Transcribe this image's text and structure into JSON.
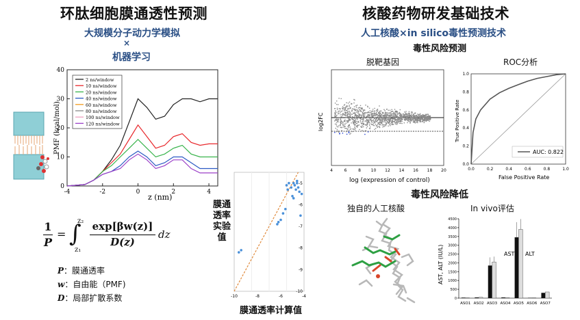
{
  "left": {
    "title": "环肽细胞膜通透性预测",
    "subtitle_line1": "大规模分子动力学模拟",
    "subtitle_x": "×",
    "subtitle_line2": "机器学习",
    "pmf_chart": {
      "ylabel": "PMF (kcal/mol)",
      "xlabel": "z (nm)",
      "yticks": [
        "0",
        "10",
        "20",
        "30",
        "40"
      ],
      "xticks": [
        "-4",
        "-2",
        "0",
        "2",
        "4"
      ],
      "legend": [
        {
          "name": "2 ns/window",
          "color": "#222222"
        },
        {
          "name": "10 ns/window",
          "color": "#e8262a"
        },
        {
          "name": "20 ns/window",
          "color": "#37b34a"
        },
        {
          "name": "40 ns/window",
          "color": "#2b59c3"
        },
        {
          "name": "60 ns/window",
          "color": "#f39b1c"
        },
        {
          "name": "80 ns/window",
          "color": "#888888"
        },
        {
          "name": "100 ns/window",
          "color": "#f0a0c0"
        },
        {
          "name": "120 ns/window",
          "color": "#9b3fc7"
        }
      ]
    },
    "equation": {
      "lhs_num": "1",
      "lhs_den": "P",
      "equals": "=",
      "int_upper": "z₂",
      "int_lower": "z₁",
      "numerator": "exp[βw(z)]",
      "denominator": "D(z)",
      "dz": "dz"
    },
    "defs": [
      {
        "sym": "P",
        "text": "：膜通透率"
      },
      {
        "sym": "w",
        "text": "：自由能（PMF)"
      },
      {
        "sym": "D",
        "text": "：局部扩散系数"
      }
    ],
    "scatter": {
      "ylabel": "膜通透率实验值",
      "xlabel": "膜通透率计算值",
      "xticks": [
        "-10",
        "-8",
        "-6",
        "-4"
      ],
      "yticks": [
        "-5",
        "-6",
        "-7",
        "-8",
        "-9",
        "-10"
      ]
    }
  },
  "right": {
    "title": "核酸药物研发基础技术",
    "subtitle": "人工核酸×in silico毒性预测技术",
    "section1": "毒性风险预测",
    "ma_plot": {
      "title": "脱靶基因",
      "ylabel": "log2FC",
      "xlabel": "log (expression of control)",
      "xticks": [
        "4",
        "6",
        "8",
        "10",
        "12",
        "14",
        "16",
        "18",
        "20"
      ]
    },
    "roc": {
      "title": "ROC分析",
      "ylabel": "True Positive Rate",
      "xlabel": "False Positive Rate",
      "ticks": [
        "0.0",
        "0.2",
        "0.4",
        "0.6",
        "0.8",
        "1.0"
      ],
      "legend": "AUC: 0.822"
    },
    "section2": "毒性风险降低",
    "molecule_title": "独自的人工核酸",
    "invivo": {
      "title": "In vivo评估",
      "ylabel": "AST, ALT (IU/L)",
      "label_ast": "AST",
      "label_alt": "ALT",
      "yticks": [
        "0",
        "500",
        "1000",
        "1500",
        "2000",
        "2500",
        "3000",
        "3500",
        "4000",
        "4500"
      ],
      "categories": [
        "ASO1",
        "ASO2",
        "ASO3",
        "ASO4",
        "ASO5",
        "ASO6",
        "ASO7"
      ],
      "ast": [
        30,
        40,
        1850,
        40,
        3450,
        20,
        300
      ],
      "alt": [
        20,
        50,
        2050,
        30,
        3900,
        20,
        350
      ]
    }
  },
  "chart_data": [
    {
      "type": "line",
      "xlabel": "z (nm)",
      "ylabel": "PMF (kcal/mol)",
      "xlim": [
        -4,
        4.5
      ],
      "ylim": [
        0,
        40
      ],
      "series": [
        {
          "name": "2 ns/window",
          "x": [
            -4,
            -3,
            -2.5,
            -2,
            -1.5,
            -1,
            -0.5,
            0,
            0.5,
            1,
            1.5,
            2,
            2.5,
            3,
            3.5,
            4,
            4.5
          ],
          "y": [
            0,
            0.5,
            2,
            5,
            9,
            14,
            22,
            30,
            27,
            23,
            24,
            28,
            30,
            30,
            29,
            30,
            30
          ]
        },
        {
          "name": "10 ns/window",
          "x": [
            -4,
            -3,
            -2.5,
            -2,
            -1.5,
            -1,
            -0.5,
            0,
            0.5,
            1,
            1.5,
            2,
            2.5,
            3,
            3.5,
            4,
            4.5
          ],
          "y": [
            0,
            0.5,
            2,
            5,
            8,
            11,
            16,
            21,
            17,
            13,
            14,
            17,
            18,
            15,
            14,
            14.5,
            14.5
          ]
        },
        {
          "name": "20 ns/window",
          "x": [
            -4,
            -3,
            -2.5,
            -2,
            -1.5,
            -1,
            -0.5,
            0,
            0.5,
            1,
            1.5,
            2,
            2.5,
            3,
            3.5,
            4,
            4.5
          ],
          "y": [
            0,
            0.5,
            2,
            5,
            7,
            10,
            13,
            16,
            13,
            10,
            11,
            13,
            14,
            11,
            10,
            10,
            10
          ]
        },
        {
          "name": "40 ns/window",
          "x": [
            -4,
            -3,
            -2.5,
            -2,
            -1.5,
            -1,
            -0.5,
            0,
            0.5,
            1,
            1.5,
            2,
            2.5,
            3,
            3.5,
            4,
            4.5
          ],
          "y": [
            0,
            0.5,
            2,
            4,
            5,
            7,
            10,
            12,
            10,
            7,
            8,
            10,
            10,
            8,
            6,
            6,
            6
          ]
        },
        {
          "name": "120 ns/window",
          "x": [
            -4,
            -3,
            -2.5,
            -2,
            -1.5,
            -1,
            -0.5,
            0,
            0.5,
            1,
            1.5,
            2,
            2.5,
            3,
            3.5,
            4,
            4.5
          ],
          "y": [
            0,
            0.5,
            2,
            4,
            5,
            6,
            9,
            11,
            9,
            6,
            7,
            9,
            9,
            6,
            4.5,
            4.5,
            4.5
          ]
        }
      ]
    },
    {
      "type": "scatter",
      "xlabel": "膜通透率计算值",
      "ylabel": "膜通透率实验值",
      "xlim": [
        -10,
        -4
      ],
      "ylim": [
        -10,
        -4.5
      ],
      "series": [
        {
          "name": "",
          "x": [
            -9.6,
            -9.4,
            -6.3,
            -6.2,
            -6.0,
            -5.8,
            -5.6,
            -5.5,
            -5.4,
            -5.3,
            -5.1,
            -5.0,
            -4.9,
            -4.8,
            -4.7,
            -4.6,
            -4.5,
            -4.6,
            -4.4,
            -4.3,
            -4.9,
            -4.2
          ],
          "y": [
            -8.2,
            -8.1,
            -6.9,
            -6.8,
            -6.7,
            -6.4,
            -6.2,
            -5.1,
            -5.3,
            -5.0,
            -5.2,
            -5.6,
            -5.0,
            -5.1,
            -5.3,
            -5.0,
            -5.2,
            -4.9,
            -5.4,
            -6.5,
            -5.7,
            -5.5
          ]
        }
      ]
    },
    {
      "type": "line",
      "xlabel": "False Positive Rate",
      "ylabel": "True Positive Rate",
      "xlim": [
        0,
        1
      ],
      "ylim": [
        0,
        1
      ],
      "series": [
        {
          "name": "AUC: 0.822",
          "x": [
            0,
            0.02,
            0.05,
            0.1,
            0.15,
            0.2,
            0.3,
            0.4,
            0.5,
            0.6,
            0.7,
            0.8,
            0.9,
            1.0
          ],
          "y": [
            0,
            0.35,
            0.5,
            0.6,
            0.66,
            0.72,
            0.79,
            0.84,
            0.88,
            0.92,
            0.95,
            0.97,
            0.99,
            1.0
          ]
        }
      ]
    },
    {
      "type": "bar",
      "categories": [
        "ASO1",
        "ASO2",
        "ASO3",
        "ASO4",
        "ASO5",
        "ASO6",
        "ASO7"
      ],
      "ylabel": "AST, ALT (IU/L)",
      "ylim": [
        0,
        4500
      ],
      "series": [
        {
          "name": "AST",
          "values": [
            30,
            40,
            1850,
            40,
            3450,
            20,
            300
          ]
        },
        {
          "name": "ALT",
          "values": [
            20,
            50,
            2050,
            30,
            3900,
            20,
            350
          ]
        }
      ]
    }
  ]
}
